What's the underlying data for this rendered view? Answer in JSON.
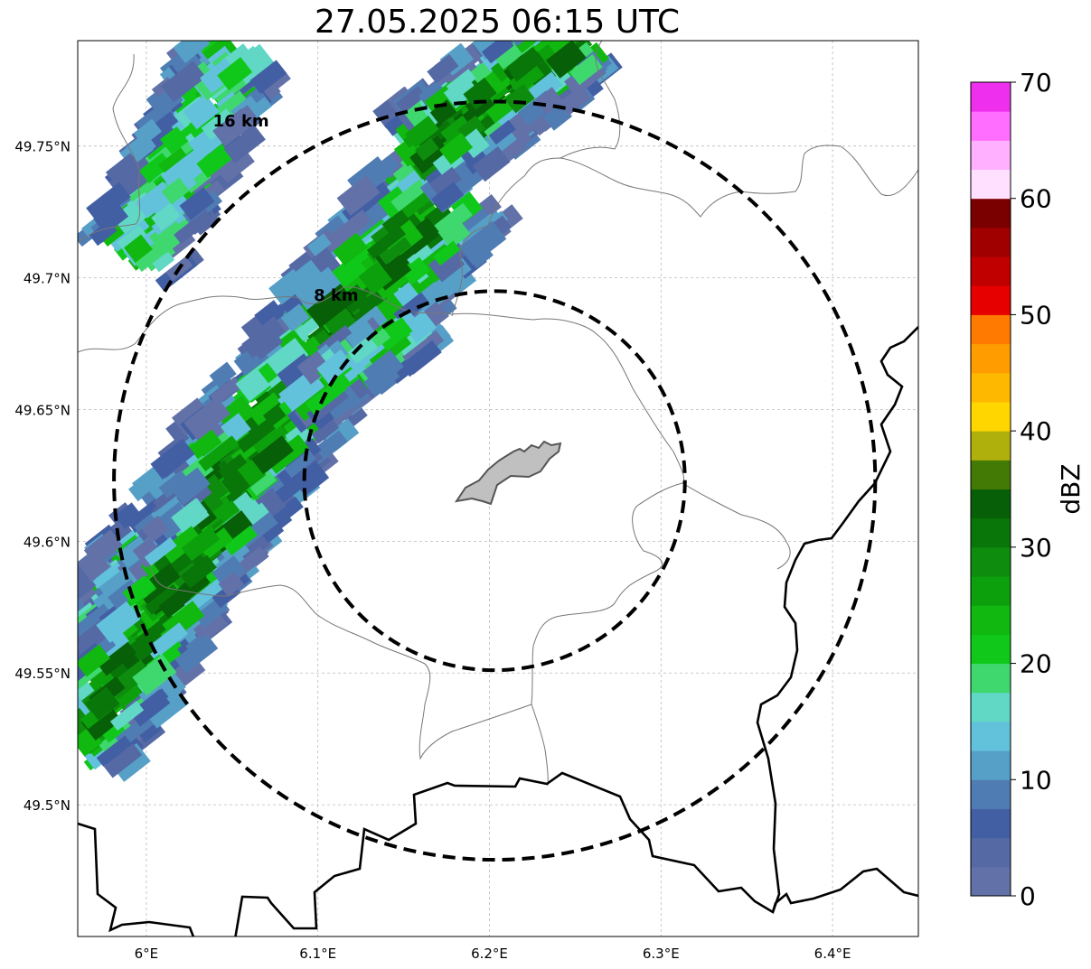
{
  "title": "27.05.2025 06:15 UTC",
  "map": {
    "lon_range": [
      5.96,
      6.45
    ],
    "lat_range": [
      49.45,
      49.79
    ],
    "lon_ticks": [
      {
        "value": 6.0,
        "label": "6°E"
      },
      {
        "value": 6.1,
        "label": "6.1°E"
      },
      {
        "value": 6.2,
        "label": "6.2°E"
      },
      {
        "value": 6.3,
        "label": "6.3°E"
      },
      {
        "value": 6.4,
        "label": "6.4°E"
      }
    ],
    "lat_ticks": [
      {
        "value": 49.75,
        "label": "49.75°N"
      },
      {
        "value": 49.7,
        "label": "49.7°N"
      },
      {
        "value": 49.65,
        "label": "49.65°N"
      },
      {
        "value": 49.6,
        "label": "49.6°N"
      },
      {
        "value": 49.55,
        "label": "49.55°N"
      },
      {
        "value": 49.5,
        "label": "49.5°N"
      }
    ],
    "radar_center": {
      "lon": 6.203,
      "lat": 49.623
    },
    "range_rings": [
      {
        "label": "8 km",
        "radius_km": 8
      },
      {
        "label": "16 km",
        "radius_km": 16
      }
    ],
    "grid": true
  },
  "colorbar": {
    "label": "dBZ",
    "ticks": [
      0,
      10,
      20,
      30,
      40,
      50,
      60,
      70
    ],
    "range": [
      0,
      70
    ],
    "colors": [
      "#6272a8",
      "#5569a5",
      "#435fa4",
      "#4f7db3",
      "#56a0c8",
      "#62c2dc",
      "#61d7c6",
      "#3fd86f",
      "#10c81a",
      "#10b810",
      "#0ca00c",
      "#0e8c0e",
      "#097609",
      "#075f07",
      "#437a06",
      "#b0b00c",
      "#ffd600",
      "#ffb800",
      "#ff9c00",
      "#ff7a00",
      "#e60000",
      "#c00000",
      "#a00000",
      "#7a0000",
      "#ffe0ff",
      "#ffb0ff",
      "#ff6eff",
      "#ee30ee"
    ]
  }
}
